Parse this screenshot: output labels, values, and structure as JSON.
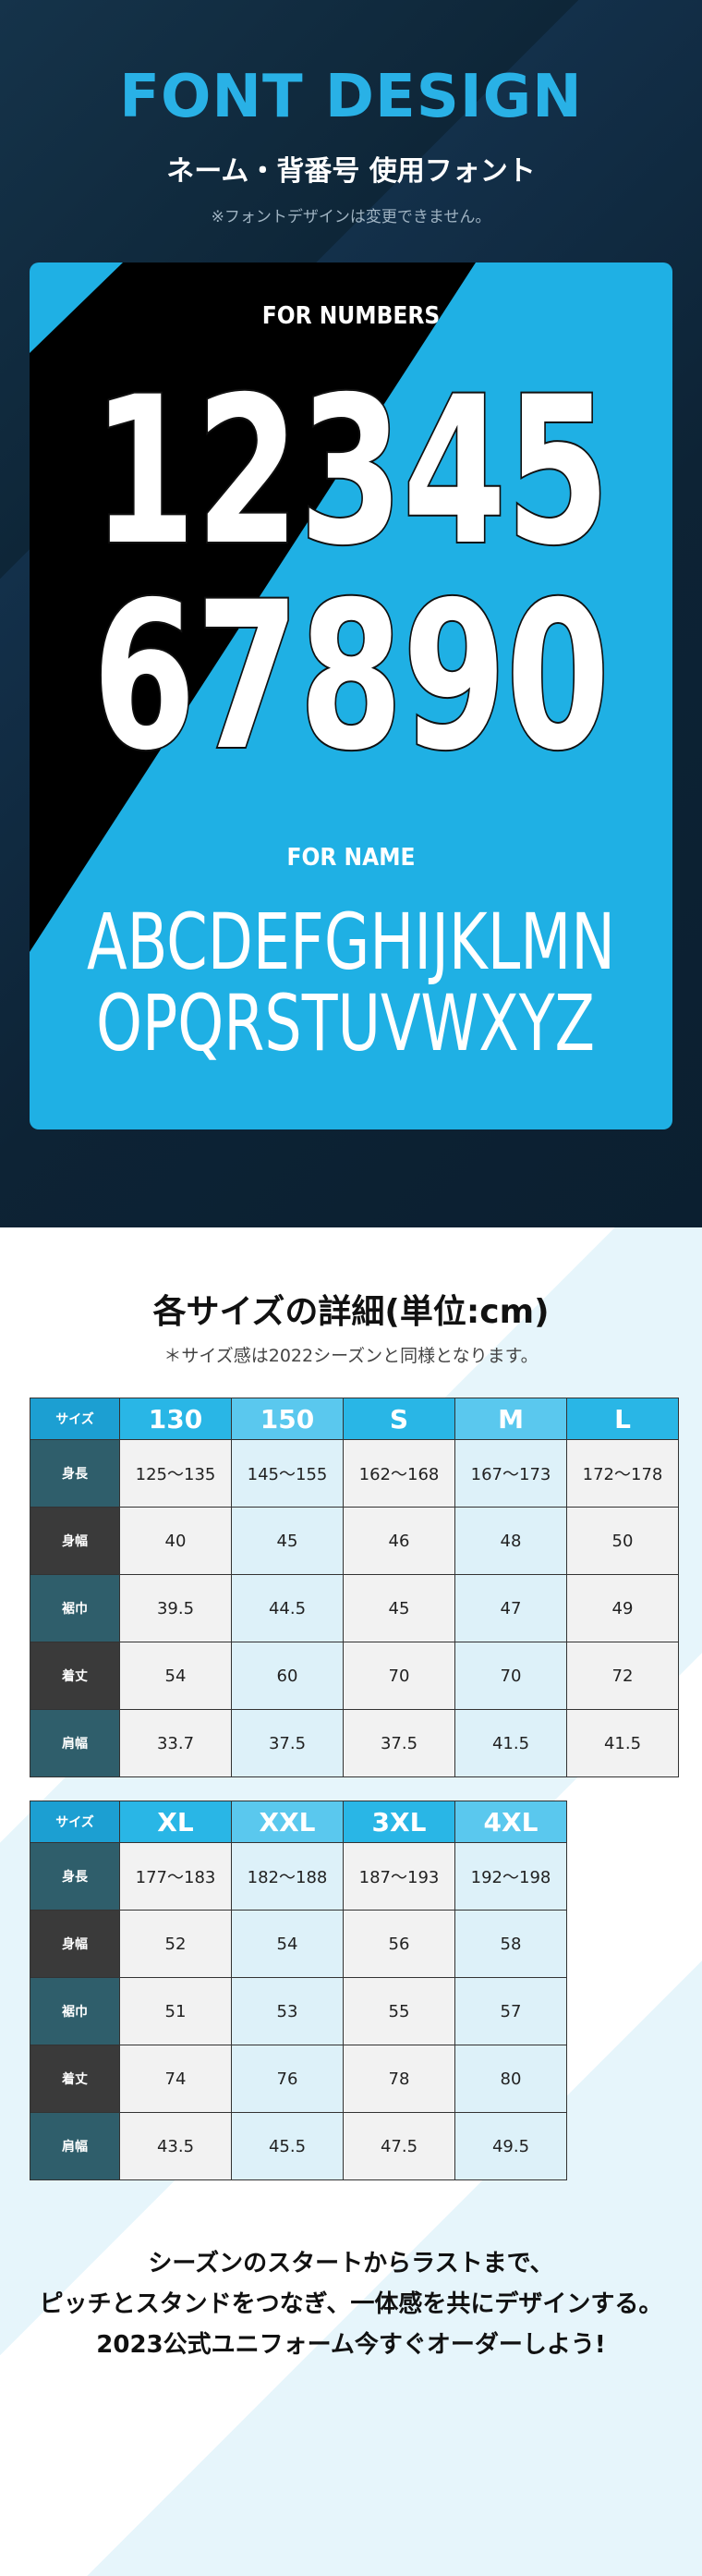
{
  "header": {
    "title": "FONT DESIGN",
    "subtitle": "ネーム・背番号 使用フォント",
    "note": "※フォントデザインは変更できません。"
  },
  "font_card": {
    "numbers_label": "FOR NUMBERS",
    "numbers": [
      "12345",
      "67890"
    ],
    "name_label": "FOR NAME",
    "letters": [
      "ABCDEFGHIJKLMN",
      "OPQRSTUVWXYZ"
    ]
  },
  "size_section": {
    "title": "各サイズの詳細(単位:cm)",
    "note": "＊サイズ感は2022シーズンと同様となります。",
    "tables": [
      {
        "headers": [
          "サイズ",
          "130",
          "150",
          "S",
          "M",
          "L"
        ],
        "rows": [
          [
            "身長",
            "125〜135",
            "145〜155",
            "162〜168",
            "167〜173",
            "172〜178"
          ],
          [
            "身幅",
            "40",
            "45",
            "46",
            "48",
            "50"
          ],
          [
            "裾巾",
            "39.5",
            "44.5",
            "45",
            "47",
            "49"
          ],
          [
            "着丈",
            "54",
            "60",
            "70",
            "70",
            "72"
          ],
          [
            "肩幅",
            "33.7",
            "37.5",
            "37.5",
            "41.5",
            "41.5"
          ]
        ]
      },
      {
        "headers": [
          "サイズ",
          "XL",
          "XXL",
          "3XL",
          "4XL"
        ],
        "rows": [
          [
            "身長",
            "177〜183",
            "182〜188",
            "187〜193",
            "192〜198"
          ],
          [
            "身幅",
            "52",
            "54",
            "56",
            "58"
          ],
          [
            "裾巾",
            "51",
            "53",
            "55",
            "57"
          ],
          [
            "着丈",
            "74",
            "76",
            "78",
            "80"
          ],
          [
            "肩幅",
            "43.5",
            "45.5",
            "47.5",
            "49.5"
          ]
        ]
      }
    ]
  },
  "closing": [
    "シーズンのスタートからラストまで、",
    "ピッチとスタンドをつなぎ、一体感を共にデザインする。",
    "2023公式ユニフォーム今すぐオーダーしよう!"
  ]
}
